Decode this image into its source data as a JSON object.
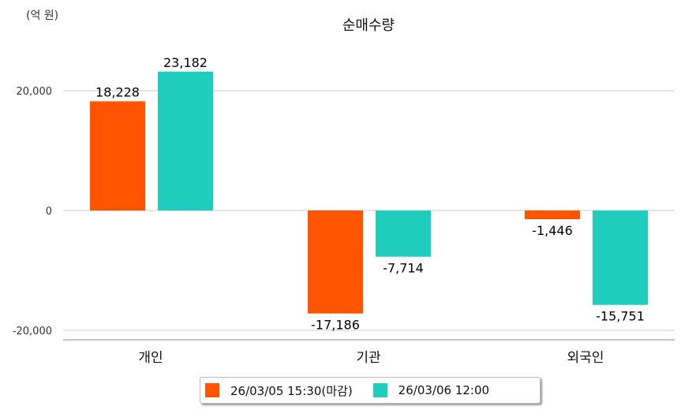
{
  "chart_data": {
    "type": "bar",
    "title": "순매수량",
    "ylabel": "(억 원)",
    "categories": [
      "개인",
      "기관",
      "외국인"
    ],
    "series": [
      {
        "name": "26/03/05 15:30(마감)",
        "color": "#FF5500",
        "values": [
          18228,
          -17186,
          -1446
        ],
        "labels": [
          "18,228",
          "-17,186",
          "-1,446"
        ]
      },
      {
        "name": "26/03/06 12:00",
        "color": "#1ECDBC",
        "values": [
          23182,
          -7714,
          -15751
        ],
        "labels": [
          "23,182",
          "-7,714",
          "-15,751"
        ]
      }
    ],
    "yticks": [
      20000,
      0,
      -20000
    ],
    "ytick_labels": [
      "20,000",
      "0",
      "-20,000"
    ],
    "ylim": [
      -21500,
      26000
    ],
    "grid": true,
    "legend": "bottom"
  }
}
